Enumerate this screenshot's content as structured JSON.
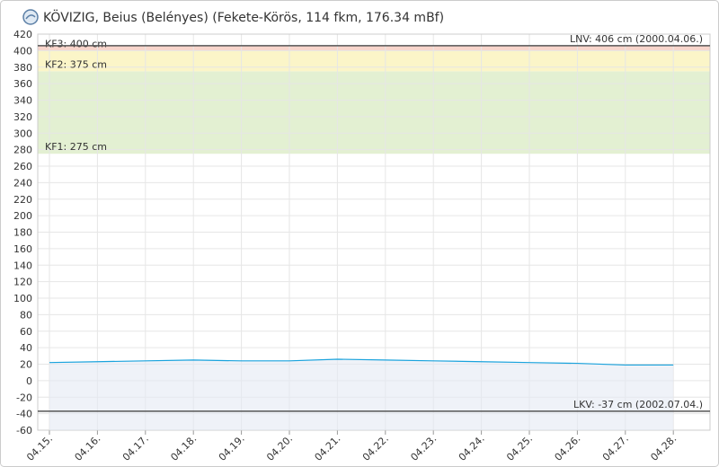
{
  "chart_data": {
    "type": "line",
    "title": "KÖVIZIG, Beius (Belényes) (Fekete-Körös, 114 fkm, 176.34 mBf)",
    "categories": [
      "04.15.",
      "04.16.",
      "04.17.",
      "04.18.",
      "04.19.",
      "04.20.",
      "04.21.",
      "04.22.",
      "04.23.",
      "04.24.",
      "04.25.",
      "04.26.",
      "04.27.",
      "04.28."
    ],
    "series": [
      {
        "color": "#1aa3dd",
        "values": [
          22,
          23,
          24,
          25,
          24,
          24,
          26,
          25,
          24,
          23,
          22,
          21,
          19,
          19
        ]
      }
    ],
    "ylim": [
      -60,
      420
    ],
    "yticks": [
      -60,
      -40,
      -20,
      0,
      20,
      40,
      60,
      80,
      100,
      120,
      140,
      160,
      180,
      200,
      220,
      240,
      260,
      280,
      300,
      320,
      340,
      360,
      380,
      400,
      420
    ],
    "grid": true,
    "bands": [
      {
        "value": 275,
        "label": "KF1: 275 cm",
        "color": "#e3f0d2"
      },
      {
        "value": 375,
        "label": "KF2: 375 cm",
        "color": "#fbf5c8"
      },
      {
        "value": 400,
        "label": "KF3: 400 cm",
        "color": "#f8d5cb"
      }
    ],
    "max_level": {
      "value": 406,
      "label": "LNV: 406 cm (2000.04.06.)"
    },
    "min_level": {
      "value": -37,
      "label": "LKV: -37 cm (2002.07.04.)"
    }
  }
}
